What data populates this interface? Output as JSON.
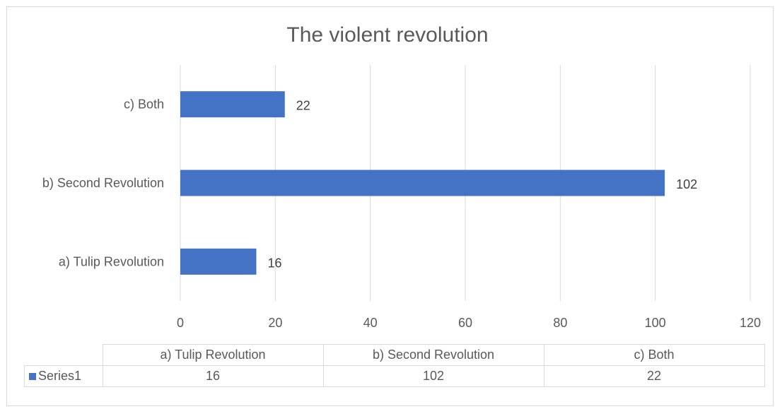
{
  "chart_data": {
    "type": "bar",
    "orientation": "horizontal",
    "title": "The violent revolution",
    "categories": [
      "a) Tulip Revolution",
      "b) Second Revolution",
      "c) Both"
    ],
    "series": [
      {
        "name": "Series1",
        "values": [
          16,
          102,
          22
        ],
        "color": "#4472c4"
      }
    ],
    "xlim": [
      0,
      120
    ],
    "xticks": [
      "0",
      "20",
      "40",
      "60",
      "80",
      "100",
      "120"
    ],
    "grid": true,
    "legend": "data-table",
    "data_labels": true
  },
  "table": {
    "series_name": "Series1",
    "headers": [
      "a) Tulip Revolution",
      "b) Second Revolution",
      "c) Both"
    ],
    "values": [
      "16",
      "102",
      "22"
    ]
  }
}
